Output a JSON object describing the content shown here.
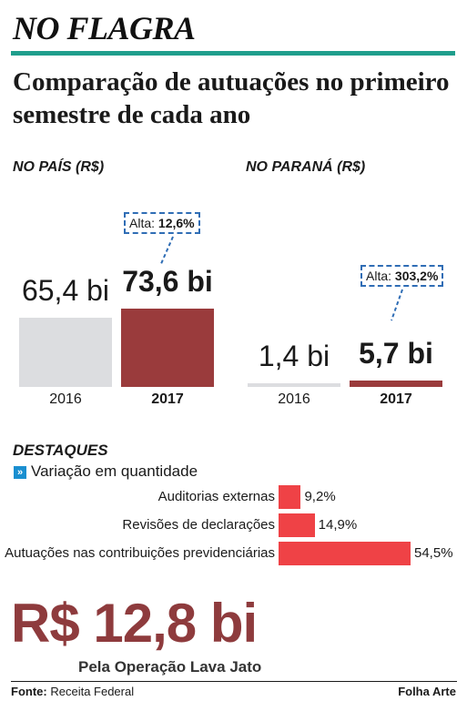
{
  "headline": "NO FLAGRA",
  "subtitle": "Comparação de autuações no primeiro semestre de cada ano",
  "colors": {
    "accent_rule": "#1f9e8c",
    "bar_2016": "#dcdde0",
    "bar_2017": "#9a3b3c",
    "highlight_bar": "#ef4246",
    "callout_border": "#2f6db5",
    "big_amount": "#8e3b3d",
    "legend_icon": "#1a8fd0"
  },
  "chart_data": [
    {
      "type": "bar",
      "title": "NO PAÍS (R$)",
      "categories": [
        "2016",
        "2017"
      ],
      "values": [
        65.4,
        73.6
      ],
      "value_labels": [
        "65,4 bi",
        "73,6 bi"
      ],
      "callout": {
        "prefix": "Alta:",
        "value": "12,6%"
      }
    },
    {
      "type": "bar",
      "title": "NO PARANÁ (R$)",
      "categories": [
        "2016",
        "2017"
      ],
      "values": [
        1.4,
        5.7
      ],
      "value_labels": [
        "1,4 bi",
        "5,7 bi"
      ],
      "callout": {
        "prefix": "Alta:",
        "value": "303,2%"
      }
    },
    {
      "type": "bar",
      "orientation": "horizontal",
      "title": "DESTAQUES",
      "legend": "Variação em quantidade",
      "categories": [
        "Auditorias externas",
        "Revisões de declarações",
        "Autuações nas contribuições previdenciárias"
      ],
      "values": [
        9.2,
        14.9,
        54.5
      ],
      "value_labels": [
        "9,2%",
        "14,9%",
        "54,5%"
      ]
    }
  ],
  "big_number": "R$ 12,8 bi",
  "big_number_caption": "Pela Operação Lava Jato",
  "footer": {
    "source_label": "Fonte:",
    "source_text": "Receita Federal",
    "credit": "Folha Arte"
  }
}
